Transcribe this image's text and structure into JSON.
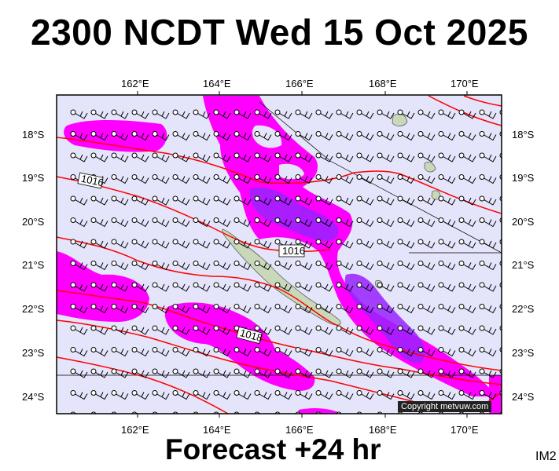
{
  "title": "2300 NCDT Wed 15 Oct 2025",
  "footer": "Forecast +24 hr",
  "code": "IM2",
  "copyright": "Copyright metvuw.com",
  "lon_labels": [
    "162°E",
    "164°E",
    "166°E",
    "168°E",
    "170°E"
  ],
  "lat_labels": [
    "18°S",
    "19°S",
    "20°S",
    "21°S",
    "22°S",
    "23°S",
    "24°S"
  ],
  "isobar_labels": [
    "1016",
    "1016",
    "1018"
  ],
  "colors": {
    "sea": "#e4e4fb",
    "rain_light": "#ff00ff",
    "rain_heavy": "#9a22ff",
    "isobar": "#ff0000",
    "land": "#c8d8b8"
  }
}
